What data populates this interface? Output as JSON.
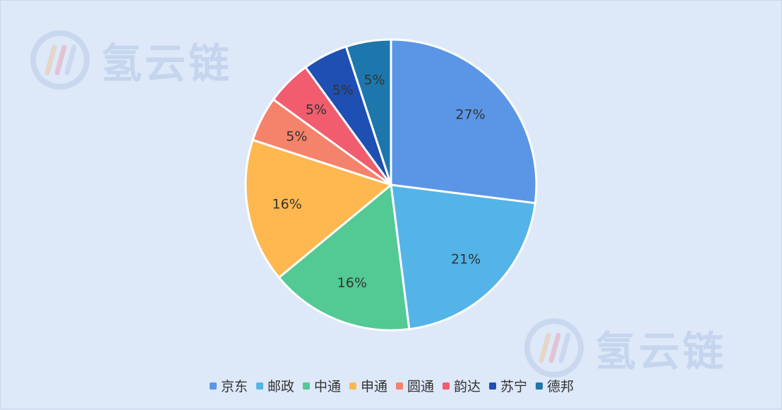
{
  "watermark": {
    "brand_text": "氢云链"
  },
  "chart_data": {
    "type": "pie",
    "title": "",
    "start_angle_deg": 90,
    "direction": "clockwise",
    "legend_position": "bottom-center",
    "slices": [
      {
        "label": "京东",
        "value": 27,
        "display": "27%",
        "color": "#5b96e6"
      },
      {
        "label": "邮政",
        "value": 21,
        "display": "21%",
        "color": "#54b4e8"
      },
      {
        "label": "中通",
        "value": 16,
        "display": "16%",
        "color": "#53c993"
      },
      {
        "label": "申通",
        "value": 16,
        "display": "16%",
        "color": "#ffb74f"
      },
      {
        "label": "圆通",
        "value": 5,
        "display": "5%",
        "color": "#f5826a"
      },
      {
        "label": "韵达",
        "value": 5,
        "display": "5%",
        "color": "#f15c6e"
      },
      {
        "label": "苏宁",
        "value": 5,
        "display": "5%",
        "color": "#1e4fb3"
      },
      {
        "label": "德邦",
        "value": 5,
        "display": "5%",
        "color": "#1d77ad"
      }
    ]
  }
}
